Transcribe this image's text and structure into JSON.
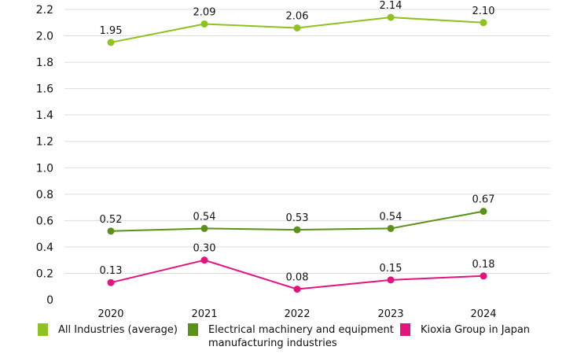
{
  "chart_data": {
    "type": "line",
    "title": "",
    "xlabel": "",
    "ylabel": "",
    "categories": [
      "2020",
      "2021",
      "2022",
      "2023",
      "2024"
    ],
    "ylim": [
      0,
      2.2
    ],
    "yticks": [
      "0",
      "0.2",
      "0.4",
      "0.6",
      "0.8",
      "1.0",
      "1.2",
      "1.4",
      "1.6",
      "1.8",
      "2.0",
      "2.2"
    ],
    "grid": true,
    "legend_position": "bottom",
    "series": [
      {
        "name": "All Industries (average)",
        "color": "#8dc21f",
        "values": [
          1.95,
          2.09,
          2.06,
          2.14,
          2.1
        ],
        "labels": [
          "1.95",
          "2.09",
          "2.06",
          "2.14",
          "2.10"
        ]
      },
      {
        "name": "Electrical machinery and equipment manufacturing industries",
        "name_lines": [
          "Electrical machinery and equipment",
          "manufacturing industries"
        ],
        "color": "#5b9118",
        "values": [
          0.52,
          0.54,
          0.53,
          0.54,
          0.67
        ],
        "labels": [
          "0.52",
          "0.54",
          "0.53",
          "0.54",
          "0.67"
        ]
      },
      {
        "name": "Kioxia Group in Japan",
        "color": "#e4137f",
        "values": [
          0.13,
          0.3,
          0.08,
          0.15,
          0.18
        ],
        "labels": [
          "0.13",
          "0.30",
          "0.08",
          "0.15",
          "0.18"
        ]
      }
    ]
  }
}
